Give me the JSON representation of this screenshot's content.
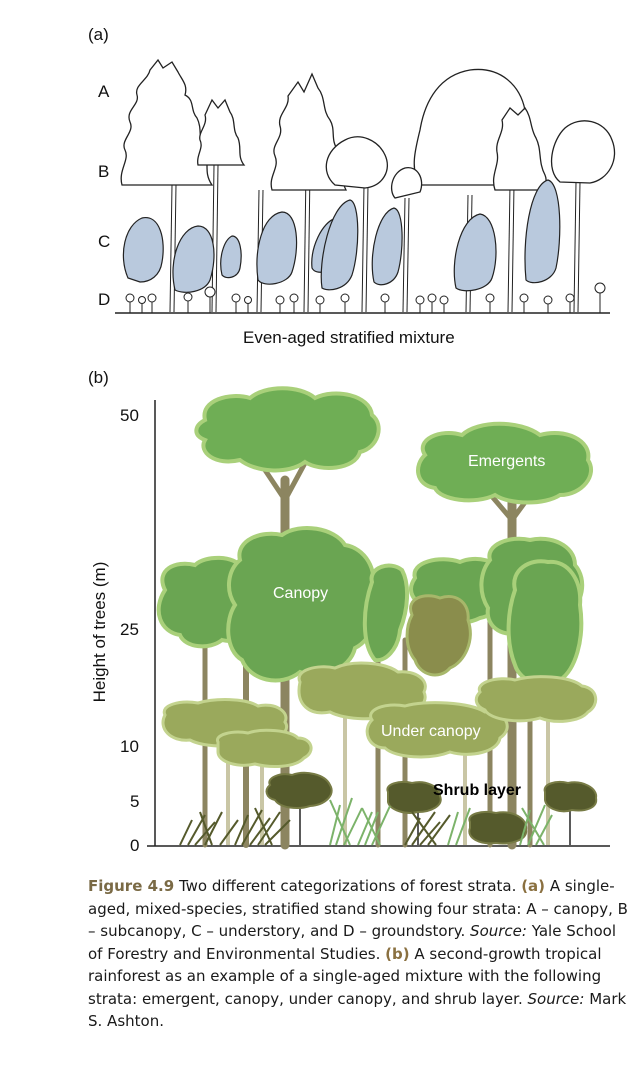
{
  "panel_a": {
    "label": "(a)",
    "strata": [
      "A",
      "B",
      "C",
      "D"
    ],
    "subtitle": "Even-aged stratified mixture"
  },
  "panel_b": {
    "label": "(b)",
    "y_axis_label": "Height  of trees (m)",
    "y_ticks": [
      "50",
      "25",
      "10",
      "5",
      "0"
    ],
    "layer_labels": {
      "emergents": "Emergents",
      "canopy": "Canopy",
      "under_canopy": "Under canopy",
      "shrub_layer": "Shrub layer"
    }
  },
  "caption": {
    "figure": "Figure 4.9",
    "text1": "Two different categorizations of forest strata.",
    "a_tag": "(a)",
    "text2": "A single-aged, mixed-species, stratified stand showing four strata: A – canopy, B – subcanopy, C – understory, and D – groundstory.",
    "source1_label": "Source:",
    "source1": "Yale School of Forestry and Environmental Studies.",
    "b_tag": "(b)",
    "text3": "A second-growth tropical rainforest as an example of a single-aged mixture with the following strata:  emergent, canopy, under canopy, and shrub layer.",
    "source2_label": "Source:",
    "source2": "Mark S. Ashton."
  },
  "colors": {
    "crown_green": "#6fae55",
    "crown_light_edge": "#a9d07a",
    "olive": "#8a8d4c",
    "light_olive": "#a7b76a",
    "dark_olive": "#555a2c",
    "trunk": "#8c8560",
    "light_trunk": "#c9c6a5",
    "understory_blue": "#b9c9dd"
  }
}
